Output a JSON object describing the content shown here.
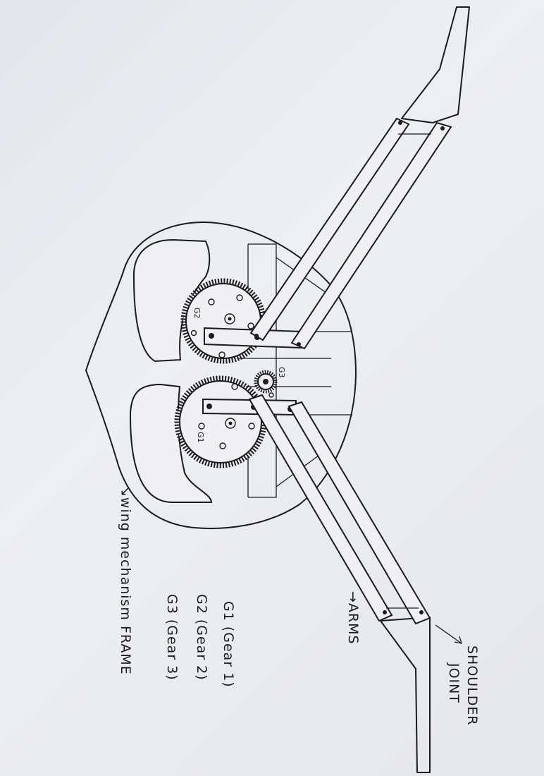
{
  "labels": {
    "shoulder_line1": "SHOULDER",
    "shoulder_line2": "JOINT",
    "arms": "→ARMS",
    "frame": "↘wing mechanism FRAME",
    "legend_g1": "G1 (Gear 1)",
    "legend_g2": "G2 (Gear 2)",
    "legend_g3": "G3 (Gear 3)",
    "gear1_tag": "G1",
    "gear2_tag": "G2",
    "gear3_tag": "G3"
  },
  "colors": {
    "ink": "#1b1b1f",
    "paper": "#eceff3"
  }
}
